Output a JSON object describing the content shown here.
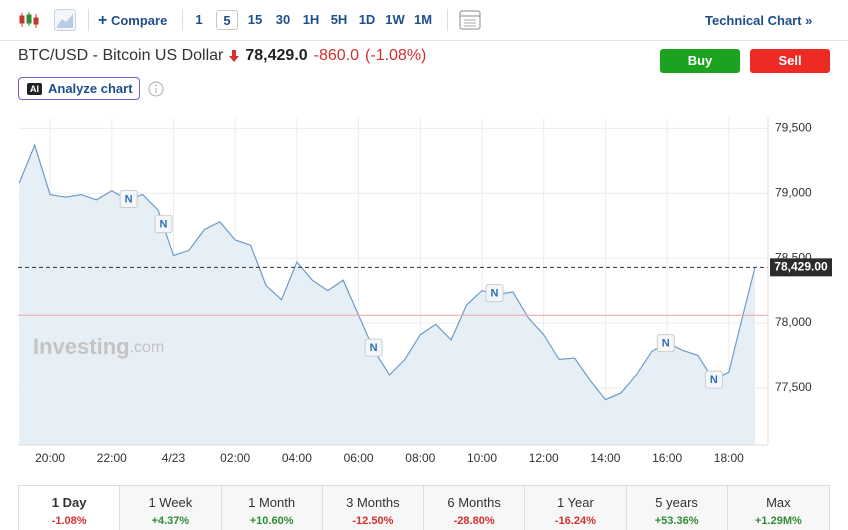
{
  "toolbar": {
    "compare": "Compare",
    "intervals": [
      "1",
      "5",
      "15",
      "30",
      "1H",
      "5H",
      "1D",
      "1W",
      "1M"
    ],
    "selected_interval": "5",
    "technical_chart": "Technical Chart »"
  },
  "header": {
    "symbol": "BTC/USD - Bitcoin US Dollar",
    "price": "78,429.0",
    "change": "-860.0",
    "change_percent": "(-1.08%)",
    "buy": "Buy",
    "sell": "Sell",
    "ai_badge": "AI",
    "analyze": "Analyze chart"
  },
  "chart_data": {
    "type": "area",
    "x": [
      19.0,
      19.5,
      20.0,
      20.5,
      21.0,
      21.5,
      22.0,
      22.5,
      23.0,
      23.5,
      24.0,
      24.5,
      25.0,
      25.5,
      26.0,
      26.5,
      27.0,
      27.5,
      28.0,
      28.5,
      29.0,
      29.5,
      30.0,
      30.5,
      31.0,
      31.5,
      32.0,
      32.5,
      33.0,
      33.5,
      34.0,
      34.5,
      35.0,
      35.5,
      36.0,
      36.5,
      37.0,
      37.5,
      38.0,
      38.5,
      39.0,
      39.5,
      40.0,
      40.5,
      41.0,
      41.5,
      42.0,
      42.5,
      42.85
    ],
    "values": [
      79080,
      79370,
      78990,
      78970,
      78990,
      78950,
      79020,
      78950,
      78990,
      78870,
      78520,
      78560,
      78720,
      78780,
      78640,
      78600,
      78290,
      78180,
      78470,
      78330,
      78250,
      78330,
      78060,
      77790,
      77600,
      77720,
      77910,
      77990,
      77870,
      78140,
      78250,
      78220,
      78240,
      78040,
      77910,
      77720,
      77730,
      77560,
      77410,
      77460,
      77600,
      77780,
      77850,
      77790,
      77750,
      77560,
      77620,
      78100,
      78429
    ],
    "color": "#6f9cc6",
    "fill": "#e6eef6",
    "xlim": [
      18.96,
      43.27
    ],
    "ylim": [
      77060,
      79580
    ],
    "xticks": [
      {
        "value": 20,
        "label": "20:00"
      },
      {
        "value": 22,
        "label": "22:00"
      },
      {
        "value": 24,
        "label": "4/23"
      },
      {
        "value": 26,
        "label": "02:00"
      },
      {
        "value": 28,
        "label": "04:00"
      },
      {
        "value": 30,
        "label": "06:00"
      },
      {
        "value": 32,
        "label": "08:00"
      },
      {
        "value": 34,
        "label": "10:00"
      },
      {
        "value": 36,
        "label": "12:00"
      },
      {
        "value": 38,
        "label": "14:00"
      },
      {
        "value": 40,
        "label": "16:00"
      },
      {
        "value": 42,
        "label": "18:00"
      }
    ],
    "yticks": [
      {
        "value": 77500,
        "label": "77,500"
      },
      {
        "value": 78000,
        "label": "78,000"
      },
      {
        "value": 78500,
        "label": "78,500"
      },
      {
        "value": 79000,
        "label": "79,000"
      },
      {
        "value": 79500,
        "label": "79,500"
      }
    ],
    "grid": true,
    "last_price": {
      "value": 78429,
      "label": "78,429.00"
    },
    "reference_line": 78060,
    "annotations": [
      {
        "x": 22.53,
        "label": "N"
      },
      {
        "x": 23.66,
        "label": "N"
      },
      {
        "x": 30.47,
        "label": "N"
      },
      {
        "x": 34.39,
        "label": "N"
      },
      {
        "x": 39.94,
        "label": "N"
      },
      {
        "x": 41.5,
        "label": "N"
      }
    ],
    "watermark": [
      "Investing",
      ".com"
    ]
  },
  "periods": {
    "selected": 0,
    "items": [
      {
        "label": "1 Day",
        "change": "-1.08%"
      },
      {
        "label": "1 Week",
        "change": "+4.37%"
      },
      {
        "label": "1 Month",
        "change": "+10.60%"
      },
      {
        "label": "3 Months",
        "change": "-12.50%"
      },
      {
        "label": "6 Months",
        "change": "-28.80%"
      },
      {
        "label": "1 Year",
        "change": "-16.24%"
      },
      {
        "label": "5 years",
        "change": "+53.36%"
      },
      {
        "label": "Max",
        "change": "+1.29M%"
      }
    ]
  }
}
